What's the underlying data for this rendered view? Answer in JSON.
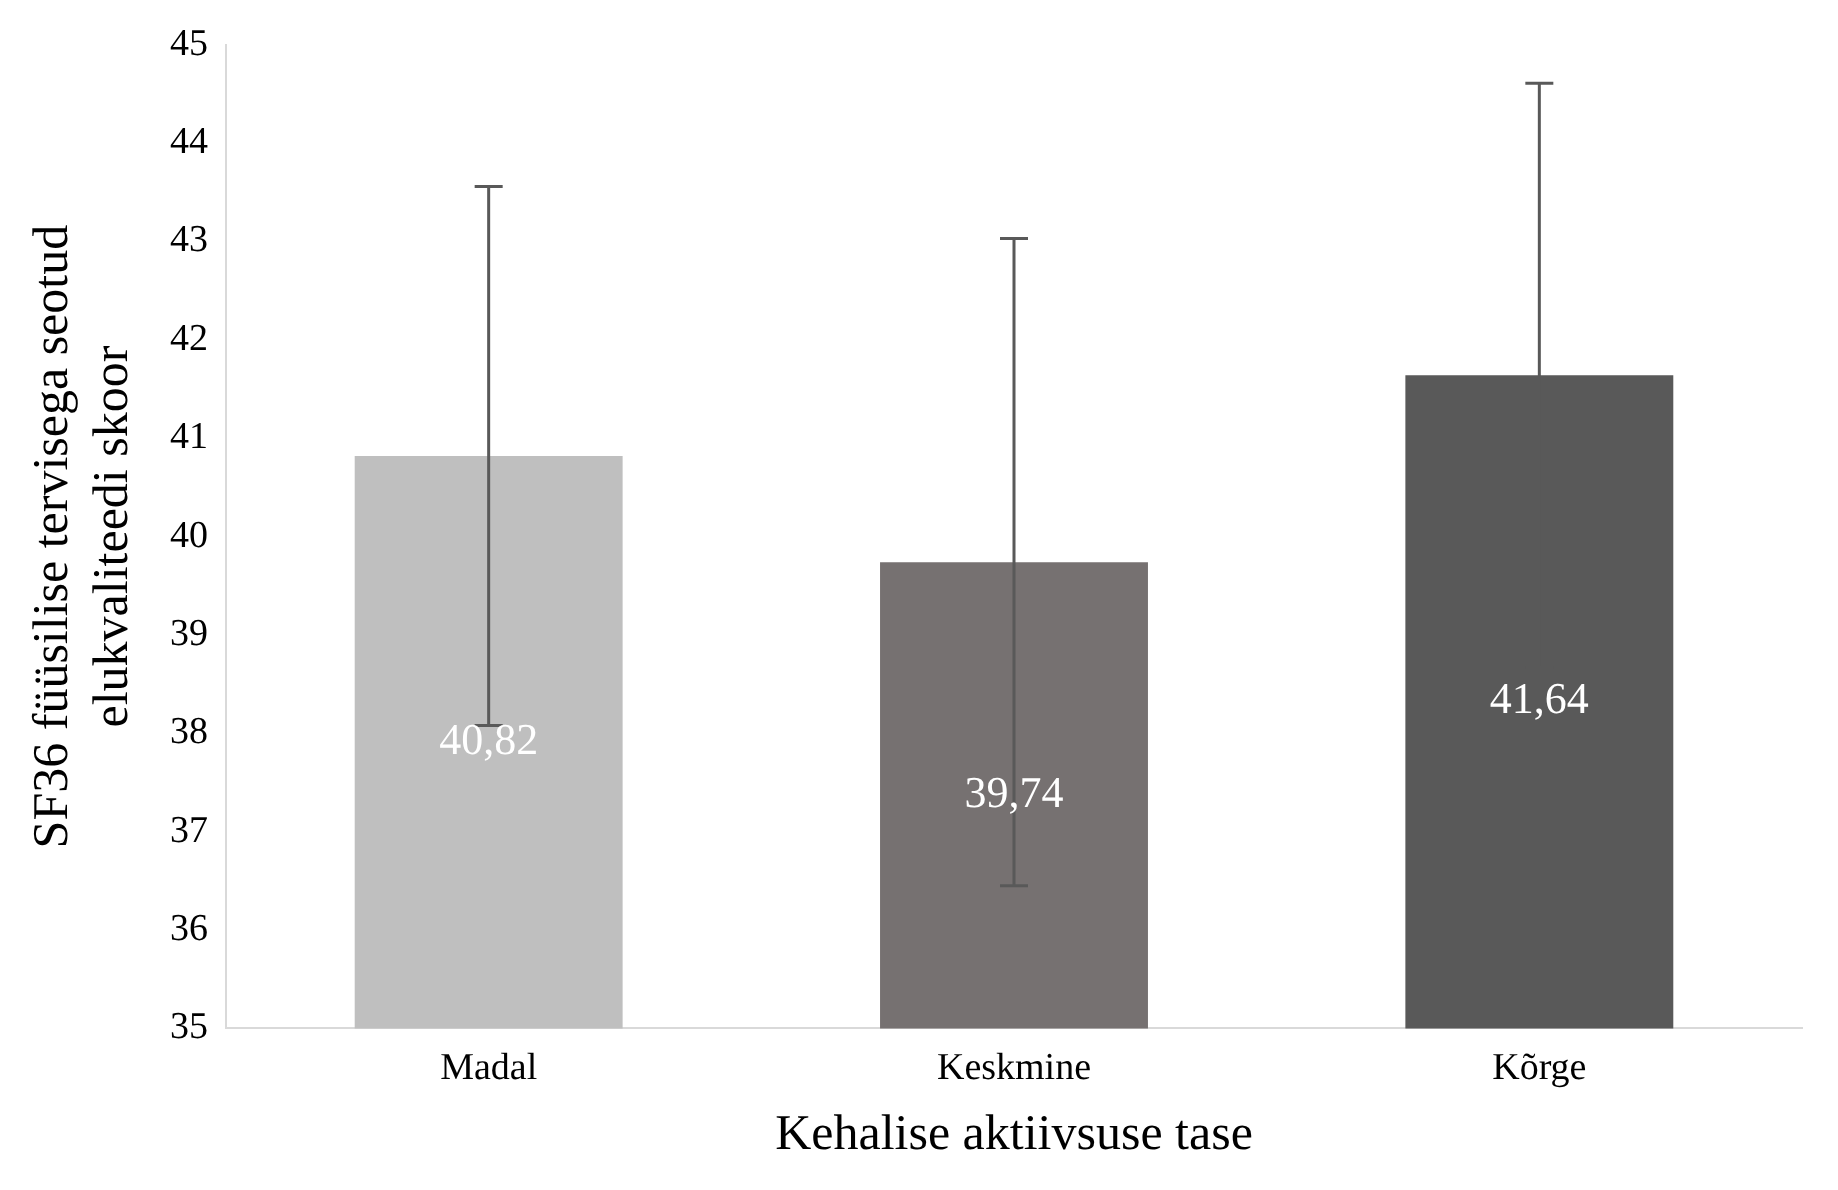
{
  "chart_data": {
    "type": "bar",
    "xlabel": "Kehalise aktiivsuse tase",
    "ylabel": "SF36 füüsilise tervisega seotud\nelukvaliteedi skoor",
    "categories": [
      "Madal",
      "Keskmine",
      "Kõrge"
    ],
    "values": [
      40.82,
      39.74,
      41.64
    ],
    "colors": [
      "#bfbfbf",
      "#767171",
      "#595959"
    ],
    "errors": [
      2.74,
      3.29,
      2.97
    ],
    "value_labels": [
      "40,82",
      "39,74",
      "41,64"
    ],
    "ylim": [
      35,
      45
    ],
    "yticks": [
      35,
      36,
      37,
      38,
      39,
      40,
      41,
      42,
      43,
      44,
      45
    ],
    "grid": false,
    "legend": false
  }
}
